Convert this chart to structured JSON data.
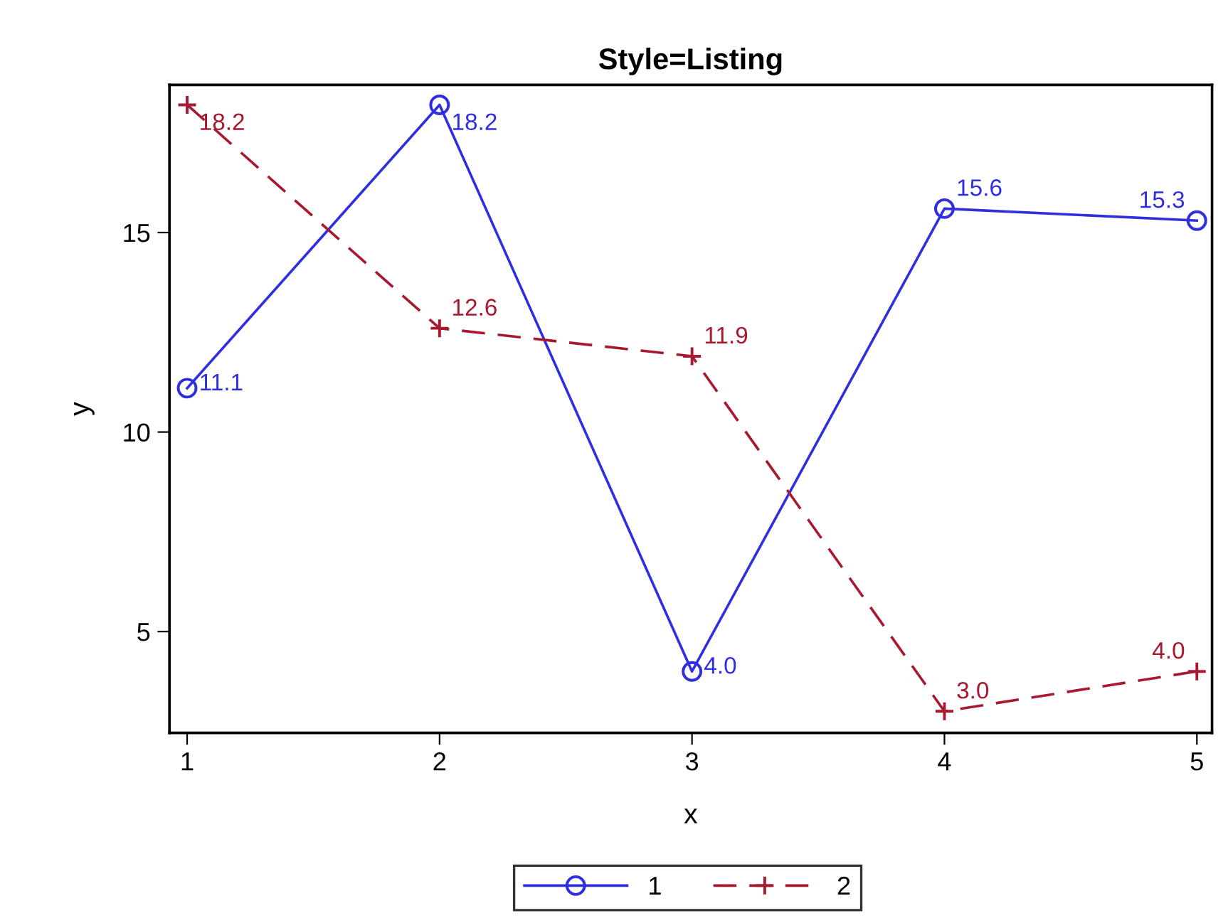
{
  "chart_data": {
    "type": "line",
    "title": "Style=Listing",
    "xlabel": "x",
    "ylabel": "y",
    "x": [
      1,
      2,
      3,
      4,
      5
    ],
    "series": [
      {
        "name": "1",
        "color": "#2f2fe0",
        "marker": "circle",
        "line_style": "solid",
        "values": [
          11.1,
          18.2,
          4.0,
          15.6,
          15.3
        ],
        "value_labels": [
          "11.1",
          "18.2",
          "4.0",
          "15.6",
          "15.3"
        ]
      },
      {
        "name": "2",
        "color": "#a8182f",
        "marker": "cross",
        "line_style": "dashed",
        "values": [
          18.2,
          12.6,
          11.9,
          3.0,
          4.0
        ],
        "value_labels": [
          "18.2",
          "12.6",
          "11.9",
          "3.0",
          "4.0"
        ]
      }
    ],
    "xlim": [
      0.93,
      5.06
    ],
    "xticks": [
      1,
      2,
      3,
      4,
      5
    ],
    "ylim": [
      2.46,
      18.7
    ],
    "yticks": [
      5,
      10,
      15
    ],
    "grid": false,
    "legend": "bottom"
  }
}
